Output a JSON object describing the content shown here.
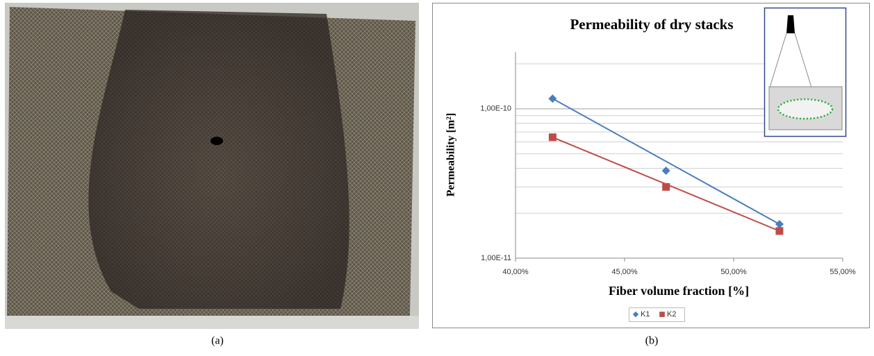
{
  "captions": [
    "(a)",
    "(b)"
  ],
  "chart_data": {
    "type": "scatter",
    "title": "Permeability of dry stacks",
    "xlabel": "Fiber volume fraction [%]",
    "ylabel": "Permeability [m²]",
    "xlim": [
      40,
      55
    ],
    "xticks": [
      {
        "value": 40,
        "label": "40,00%"
      },
      {
        "value": 45,
        "label": "45,00%"
      },
      {
        "value": 50,
        "label": "50,00%"
      },
      {
        "value": 55,
        "label": "55,00%"
      }
    ],
    "ylim": [
      1e-11,
      2.4e-10
    ],
    "ylog": true,
    "yticks": [
      {
        "value": 1e-11,
        "label": "1,00E-11"
      },
      {
        "value": 1e-10,
        "label": "1,00E-10"
      }
    ],
    "y_minor_grid": [
      2e-11,
      3e-11,
      4e-11,
      5e-11,
      6e-11,
      7e-11,
      8e-11,
      9e-11,
      2e-10
    ],
    "grid": true,
    "trendline": true,
    "legend": "bottom",
    "series": [
      {
        "name": "K1",
        "color": "#4a7ebb",
        "marker": "diamond",
        "x": [
          41.7,
          46.9,
          52.1
        ],
        "values": [
          1.17e-10,
          3.85e-11,
          1.69e-11
        ]
      },
      {
        "name": "K2",
        "color": "#be4b48",
        "marker": "square",
        "x": [
          41.7,
          46.9,
          52.1
        ],
        "values": [
          6.45e-11,
          3e-11,
          1.52e-11
        ]
      }
    ]
  }
}
